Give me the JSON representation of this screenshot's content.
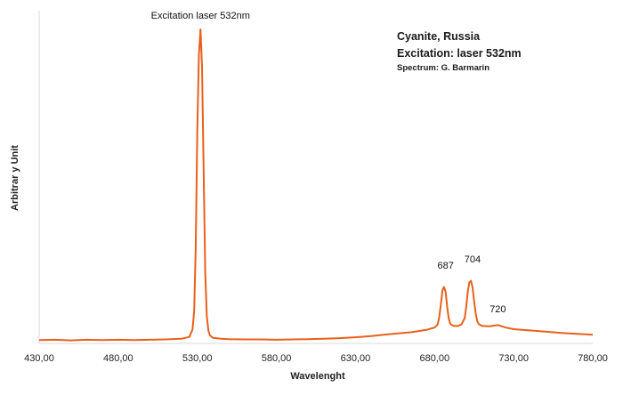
{
  "chart_data": {
    "type": "line",
    "xlabel": "Wavelenght",
    "ylabel": "Arbitrar y Unit",
    "xlim": [
      430,
      780
    ],
    "ylim": [
      0,
      100
    ],
    "x_ticks": [
      "430,00",
      "480,00",
      "530,00",
      "580,00",
      "630,00",
      "680,00",
      "730,00",
      "780,00"
    ],
    "x_tick_values": [
      430,
      480,
      530,
      580,
      630,
      680,
      730,
      780
    ],
    "grid": false,
    "line_color": "#e8601c",
    "info_lines": [
      "Cyanite, Russia",
      "Excitation: laser 532nm",
      "Spectrum: G. Barmarin"
    ],
    "annotations": [
      {
        "text": "Excitation laser 532nm",
        "x": 532,
        "y": 100
      },
      {
        "text": "687",
        "x": 687,
        "y": 20
      },
      {
        "text": "704",
        "x": 704,
        "y": 22
      },
      {
        "text": "720",
        "x": 720,
        "y": 6
      }
    ],
    "series": [
      {
        "values": [
          [
            430,
            0.5
          ],
          [
            440,
            0.6
          ],
          [
            450,
            0.4
          ],
          [
            460,
            0.6
          ],
          [
            470,
            0.5
          ],
          [
            480,
            0.6
          ],
          [
            490,
            0.5
          ],
          [
            500,
            0.6
          ],
          [
            510,
            0.7
          ],
          [
            520,
            0.9
          ],
          [
            525,
            1.5
          ],
          [
            527,
            4
          ],
          [
            528,
            10
          ],
          [
            529,
            30
          ],
          [
            530,
            68
          ],
          [
            531,
            92
          ],
          [
            532,
            100
          ],
          [
            533,
            88
          ],
          [
            534,
            55
          ],
          [
            535,
            22
          ],
          [
            536,
            8
          ],
          [
            537,
            3.5
          ],
          [
            538,
            2
          ],
          [
            540,
            1.2
          ],
          [
            545,
            0.9
          ],
          [
            550,
            0.8
          ],
          [
            560,
            0.7
          ],
          [
            570,
            0.7
          ],
          [
            580,
            0.6
          ],
          [
            590,
            0.7
          ],
          [
            600,
            0.8
          ],
          [
            610,
            0.9
          ],
          [
            620,
            1.1
          ],
          [
            630,
            1.4
          ],
          [
            640,
            1.8
          ],
          [
            650,
            2.3
          ],
          [
            660,
            2.8
          ],
          [
            665,
            3.0
          ],
          [
            670,
            3.4
          ],
          [
            675,
            3.8
          ],
          [
            680,
            4.5
          ],
          [
            682,
            5.5
          ],
          [
            683,
            8
          ],
          [
            684,
            12
          ],
          [
            685,
            16.5
          ],
          [
            686,
            17.5
          ],
          [
            687,
            16
          ],
          [
            688,
            11
          ],
          [
            689,
            7.2
          ],
          [
            690,
            5.6
          ],
          [
            692,
            5.0
          ],
          [
            695,
            5.0
          ],
          [
            697,
            5.5
          ],
          [
            699,
            7.5
          ],
          [
            700,
            11
          ],
          [
            701,
            16
          ],
          [
            702,
            19
          ],
          [
            703,
            19.5
          ],
          [
            704,
            17.5
          ],
          [
            705,
            13
          ],
          [
            706,
            9
          ],
          [
            707,
            6.5
          ],
          [
            708,
            5.6
          ],
          [
            710,
            5.0
          ],
          [
            715,
            4.9
          ],
          [
            720,
            5.3
          ],
          [
            725,
            4.5
          ],
          [
            730,
            4.0
          ],
          [
            740,
            3.6
          ],
          [
            750,
            3.2
          ],
          [
            760,
            2.8
          ],
          [
            770,
            2.5
          ],
          [
            780,
            2.2
          ]
        ]
      }
    ]
  }
}
